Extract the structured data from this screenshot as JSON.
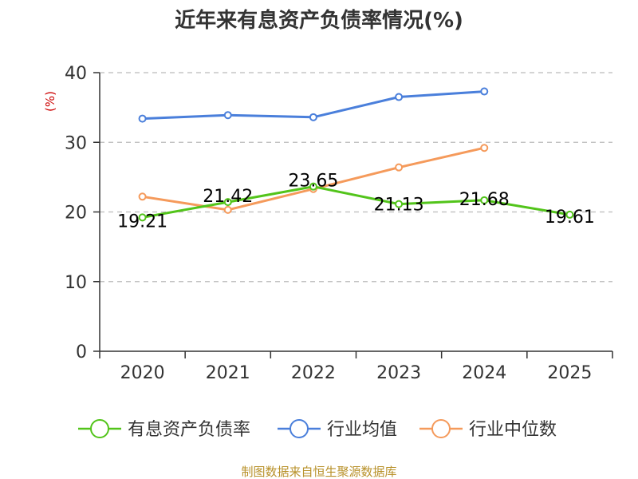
{
  "chart_data": {
    "type": "line",
    "title": "近年来有息资产负债率情况(%)",
    "ylabel": "(%)",
    "categories": [
      "2020",
      "2021",
      "2022",
      "2023",
      "2024",
      "2025"
    ],
    "yticks": [
      "0",
      "10",
      "20",
      "30",
      "40"
    ],
    "ylim": [
      0,
      40
    ],
    "grid": "horizontal dashed",
    "legend_position": "bottom",
    "series": [
      {
        "name": "有息资产负债率",
        "color": "#52c41a",
        "values": [
          19.21,
          21.42,
          23.65,
          21.13,
          21.68,
          19.61
        ],
        "labels": [
          "19.21",
          "21.42",
          "23.65",
          "21.13",
          "21.68",
          "19.61"
        ]
      },
      {
        "name": "行业均值",
        "color": "#4a7fdb",
        "values": [
          33.4,
          33.9,
          33.6,
          36.5,
          37.3,
          null
        ]
      },
      {
        "name": "行业中位数",
        "color": "#f59a5b",
        "values": [
          22.2,
          20.3,
          23.3,
          26.4,
          29.2,
          null
        ]
      }
    ],
    "source": "制图数据来自恒生聚源数据库"
  }
}
